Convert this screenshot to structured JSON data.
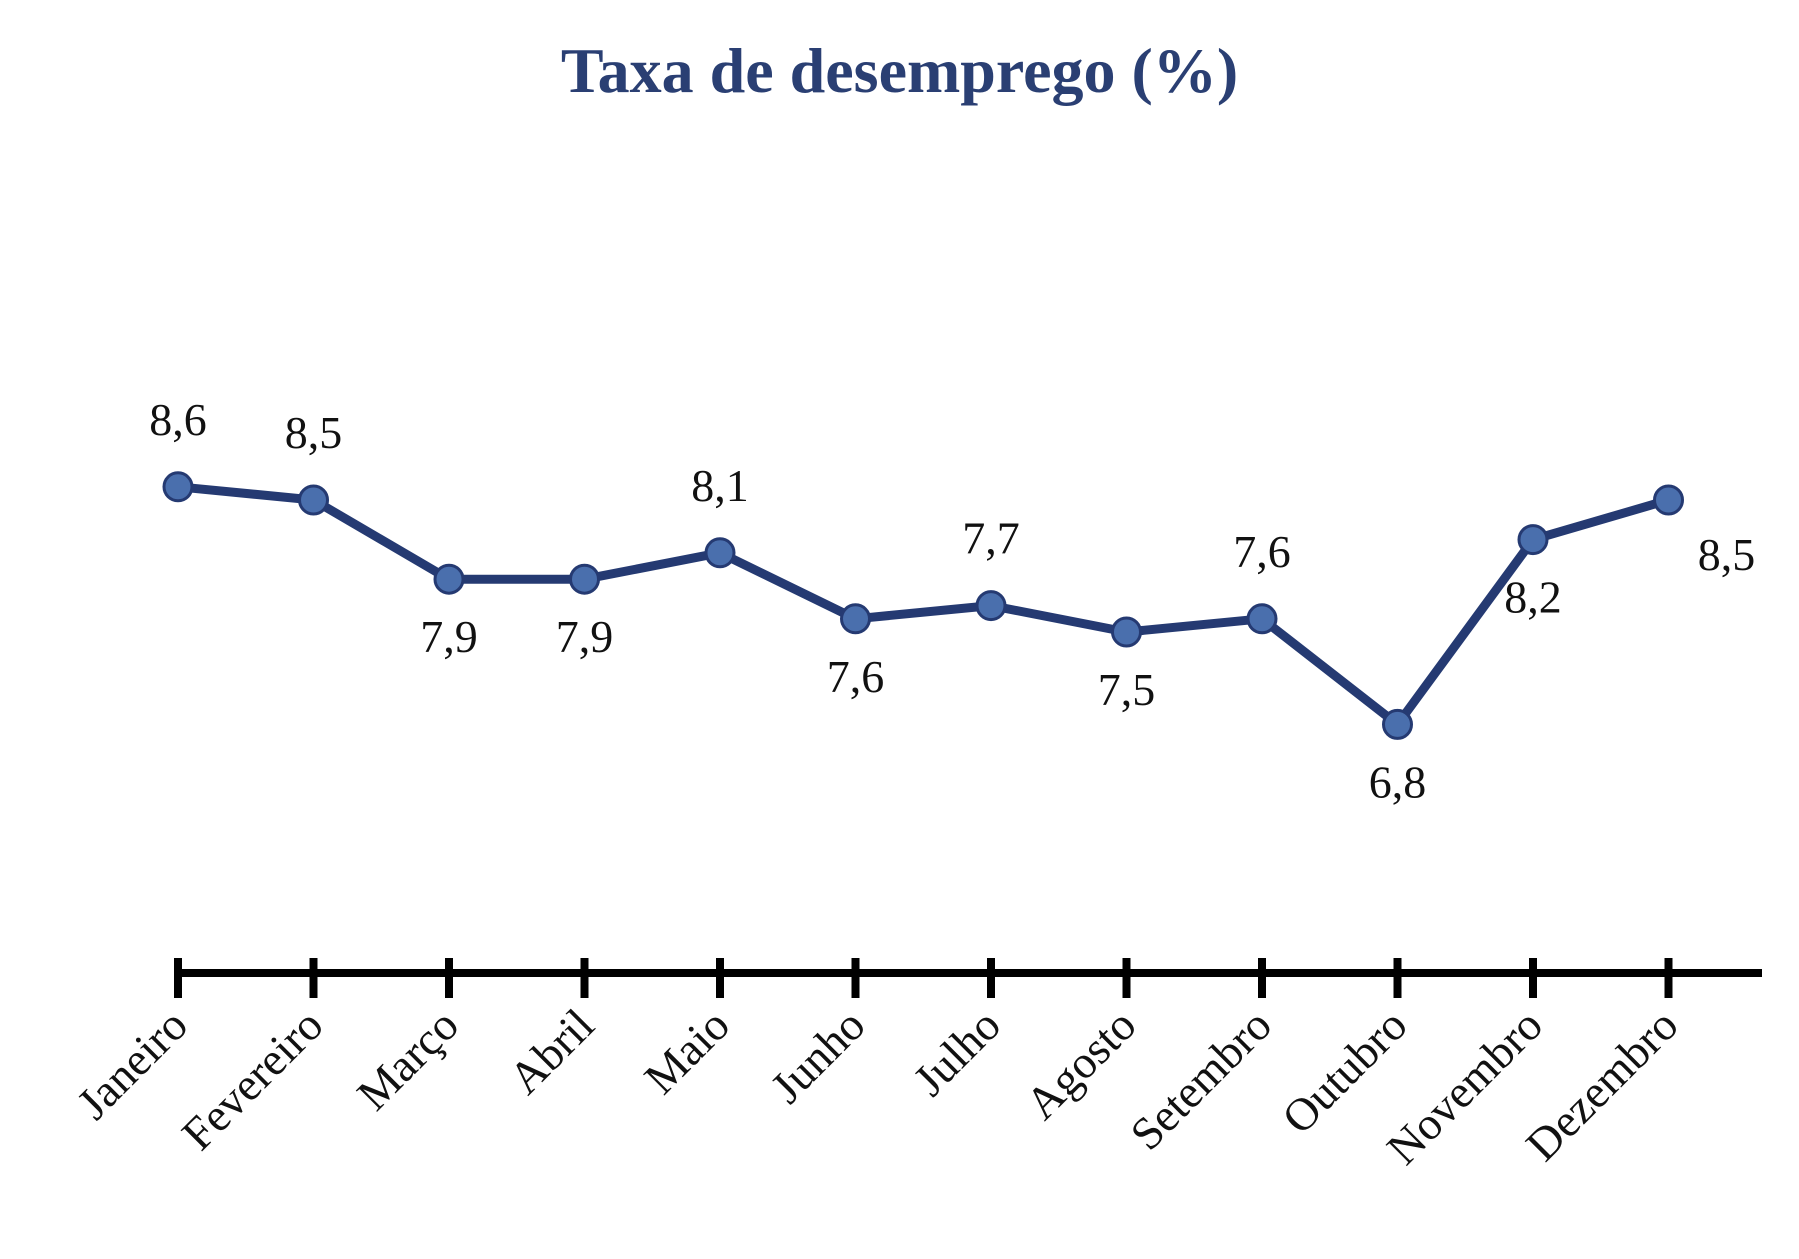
{
  "chart_data": {
    "type": "line",
    "title": "Taxa de desemprego (%)",
    "xlabel": "",
    "ylabel": "",
    "categories": [
      "Janeiro",
      "Fevereiro",
      "Março",
      "Abril",
      "Maio",
      "Junho",
      "Julho",
      "Agosto",
      "Setembro",
      "Outubro",
      "Novembro",
      "Dezembro"
    ],
    "values": [
      8.6,
      8.5,
      7.9,
      7.9,
      8.1,
      7.6,
      7.7,
      7.5,
      7.6,
      6.8,
      8.2,
      8.5
    ],
    "value_labels": [
      "8,6",
      "8,5",
      "7,9",
      "7,9",
      "8,1",
      "7,6",
      "7,7",
      "7,5",
      "7,6",
      "6,8",
      "8,2",
      "8,5"
    ],
    "label_positions": [
      "above",
      "above",
      "below",
      "below",
      "above",
      "below",
      "above",
      "below",
      "above",
      "below",
      "below",
      "below-right"
    ],
    "grid": false,
    "legend": "none",
    "colors": {
      "line": "#253a72",
      "marker_fill": "#4a6fad",
      "marker_stroke": "#253a72",
      "axis": "#000000",
      "title": "#2a3f73"
    }
  }
}
